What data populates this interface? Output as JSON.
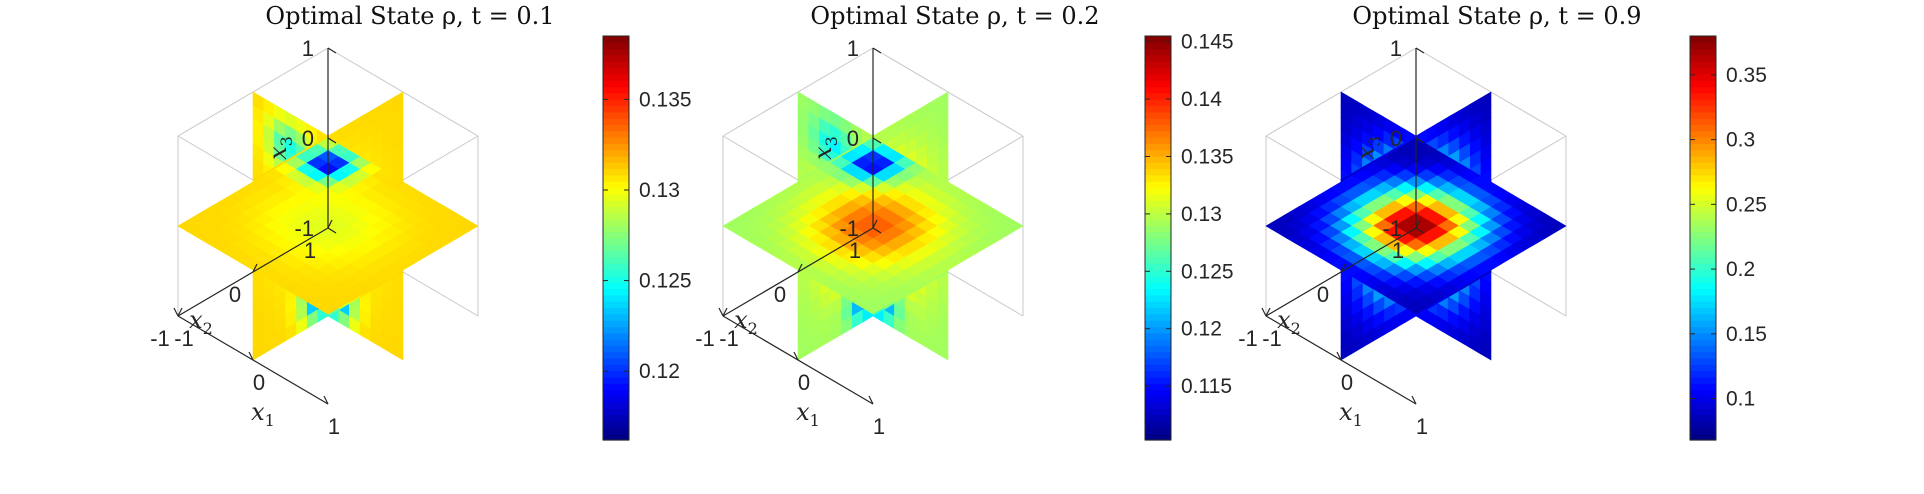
{
  "chart_data": [
    {
      "type": "heatmap",
      "title": "Optimal State ρ, t = 0.1",
      "xlabel": "x1",
      "ylabel": "x2",
      "zlabel": "x3",
      "xlim": [
        -1,
        1
      ],
      "ylim": [
        -1,
        1
      ],
      "zlim": [
        -1,
        1
      ],
      "x_ticks": [
        "-1",
        "0",
        "1"
      ],
      "y_ticks": [
        "-1",
        "0",
        "1"
      ],
      "z_ticks": [
        "-1",
        "0",
        "1"
      ],
      "clim": [
        0.1162,
        0.1385
      ],
      "colorbar_ticks": [
        0.12,
        0.125,
        0.13,
        0.135
      ],
      "colorbar_tick_labels": [
        "0.12",
        "0.125",
        "0.13",
        "0.135"
      ],
      "colormap": "jet",
      "field": {
        "center": 0.1295,
        "edge": 0.131,
        "low_lobes": 0.1175
      }
    },
    {
      "type": "heatmap",
      "title": "Optimal State ρ, t = 0.2",
      "xlabel": "x1",
      "ylabel": "x2",
      "zlabel": "x3",
      "xlim": [
        -1,
        1
      ],
      "ylim": [
        -1,
        1
      ],
      "zlim": [
        -1,
        1
      ],
      "x_ticks": [
        "-1",
        "0",
        "1"
      ],
      "y_ticks": [
        "-1",
        "0",
        "1"
      ],
      "z_ticks": [
        "-1",
        "0",
        "1"
      ],
      "clim": [
        0.1103,
        0.1455
      ],
      "colorbar_ticks": [
        0.115,
        0.12,
        0.125,
        0.13,
        0.135,
        0.14,
        0.145
      ],
      "colorbar_tick_labels": [
        "0.115",
        "0.12",
        "0.125",
        "0.13",
        "0.135",
        "0.14",
        "0.145"
      ],
      "colormap": "jet",
      "field": {
        "center": 0.138,
        "edge": 0.129,
        "low_lobes": 0.112
      }
    },
    {
      "type": "heatmap",
      "title": "Optimal State ρ, t = 0.9",
      "xlabel": "x1",
      "ylabel": "x2",
      "zlabel": "x3",
      "xlim": [
        -1,
        1
      ],
      "ylim": [
        -1,
        1
      ],
      "zlim": [
        -1,
        1
      ],
      "x_ticks": [
        "-1",
        "0",
        "1"
      ],
      "y_ticks": [
        "-1",
        "0",
        "1"
      ],
      "z_ticks": [
        "-1",
        "0",
        "1"
      ],
      "clim": [
        0.068,
        0.38
      ],
      "colorbar_ticks": [
        0.1,
        0.15,
        0.2,
        0.25,
        0.3,
        0.35
      ],
      "colorbar_tick_labels": [
        "0.1",
        "0.15",
        "0.2",
        "0.25",
        "0.3",
        "0.35"
      ],
      "colormap": "jet",
      "field": {
        "center": 0.375,
        "edge": 0.085,
        "low_lobes": 0.075
      }
    }
  ]
}
